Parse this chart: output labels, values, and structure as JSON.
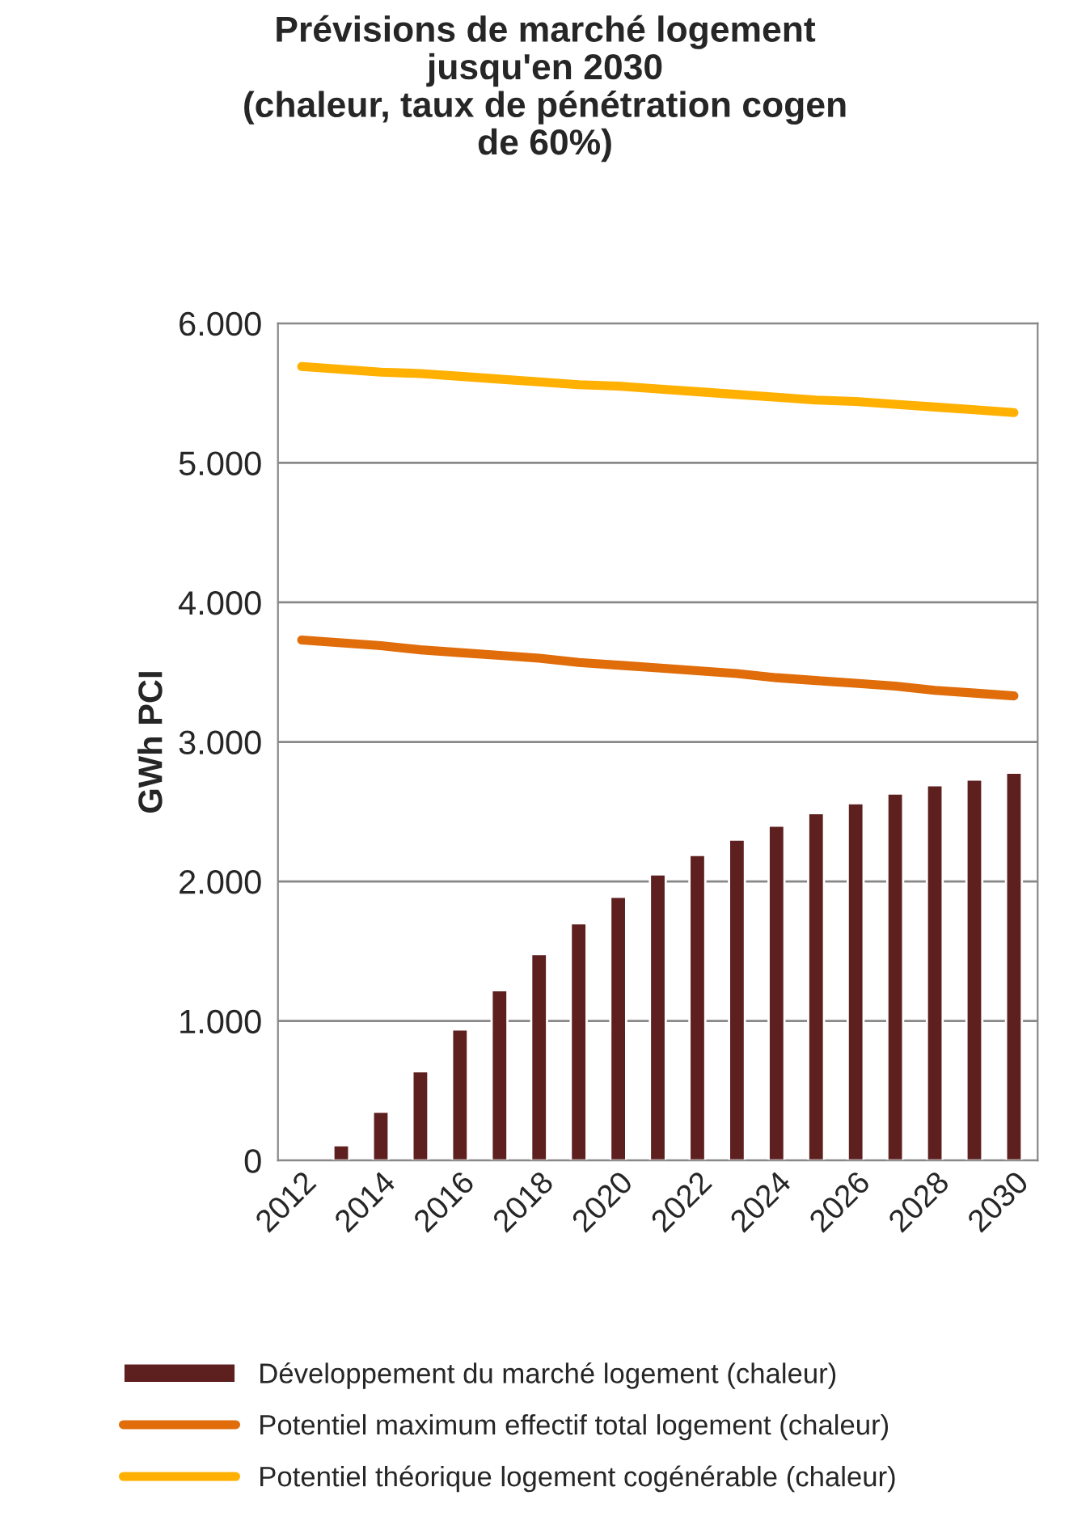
{
  "chart_data": {
    "type": "bar",
    "title": "Prévisions de marché logement\njusqu'en 2030\n(chaleur, taux de pénétration cogen\nde 60%)",
    "ylabel": "GWh PCI",
    "categories": [
      "2012",
      null,
      "2014",
      null,
      "2016",
      null,
      "2018",
      null,
      "2020",
      null,
      "2022",
      null,
      "2024",
      null,
      "2026",
      null,
      "2028",
      null,
      "2030"
    ],
    "series": [
      {
        "name": "Développement du marché logement (chaleur)",
        "color": "#5e1f1f",
        "values": [
          null,
          110,
          350,
          640,
          940,
          1220,
          1480,
          1700,
          1890,
          2050,
          2190,
          2300,
          2400,
          2490,
          2560,
          2630,
          2690,
          2730,
          2780
        ]
      },
      {
        "name": "Potentiel maximum effectif total logement (chaleur)",
        "type": "line",
        "color": "#e06c0a",
        "values": [
          3730,
          3710,
          3690,
          3660,
          3640,
          3620,
          3600,
          3570,
          3550,
          3530,
          3510,
          3490,
          3460,
          3440,
          3420,
          3400,
          3370,
          3350,
          3330
        ]
      },
      {
        "name": "Potentiel théorique logement cogénérable (chaleur)",
        "type": "line",
        "color": "#ffb000",
        "values": [
          5690,
          5670,
          5650,
          5640,
          5620,
          5600,
          5580,
          5560,
          5550,
          5530,
          5510,
          5490,
          5470,
          5450,
          5440,
          5420,
          5400,
          5380,
          5360
        ]
      }
    ],
    "ylim": [
      0,
      6000
    ],
    "yticks": [
      0,
      {
        "value": 1000,
        "label": "1.000"
      },
      {
        "value": 2000,
        "label": "2.000"
      },
      {
        "value": 3000,
        "label": "3.000"
      },
      {
        "value": 4000,
        "label": "4.000"
      },
      {
        "value": 5000,
        "label": "5.000"
      },
      {
        "value": 6000,
        "label": "6.000"
      }
    ],
    "grid": "y",
    "legend": "bottom",
    "marker": "none",
    "line_style": "solid"
  }
}
